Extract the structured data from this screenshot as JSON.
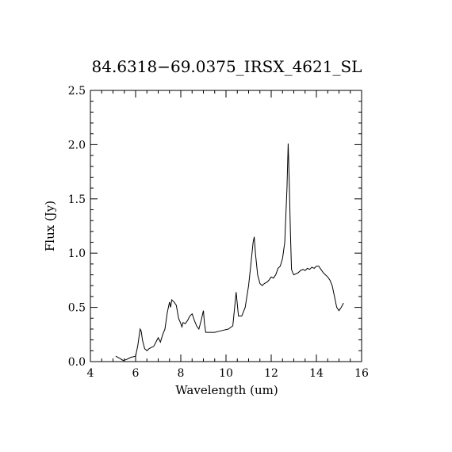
{
  "chart_data": {
    "type": "line",
    "title": "84.6318−69.0375_IRSX_4621_SL",
    "xlabel": "Wavelength (um)",
    "ylabel": "Flux (Jy)",
    "xlim": [
      4,
      16
    ],
    "ylim": [
      0,
      2.5
    ],
    "xticks": [
      4,
      6,
      8,
      10,
      12,
      14,
      16
    ],
    "xtick_labels": [
      "4",
      "6",
      "8",
      "10",
      "12",
      "14",
      "16"
    ],
    "yticks": [
      0,
      0.5,
      1,
      1.5,
      2,
      2.5
    ],
    "ytick_labels": [
      "0.0",
      "0.5",
      "1.0",
      "1.5",
      "2.0",
      "2.5"
    ],
    "x_minor_step": 0.5,
    "y_minor_step": 0.1,
    "grid": false,
    "series": [
      {
        "x": [
          5.12,
          5.3,
          5.45,
          5.6,
          5.8,
          6.0,
          6.1,
          6.2,
          6.25,
          6.3,
          6.4,
          6.5,
          6.6,
          6.7,
          6.8,
          6.9,
          7.0,
          7.1,
          7.2,
          7.3,
          7.4,
          7.5,
          7.55,
          7.6,
          7.7,
          7.8,
          7.9,
          8.0,
          8.05,
          8.1,
          8.2,
          8.3,
          8.4,
          8.5,
          8.6,
          8.7,
          8.8,
          8.9,
          9.0,
          9.05,
          9.1,
          9.3,
          9.5,
          9.7,
          9.9,
          10.1,
          10.3,
          10.45,
          10.55,
          10.7,
          10.85,
          11.0,
          11.1,
          11.2,
          11.25,
          11.3,
          11.4,
          11.5,
          11.6,
          11.7,
          11.8,
          11.9,
          12.0,
          12.1,
          12.2,
          12.3,
          12.4,
          12.5,
          12.6,
          12.7,
          12.75,
          12.8,
          12.85,
          12.9,
          12.95,
          13.0,
          13.1,
          13.2,
          13.3,
          13.4,
          13.5,
          13.6,
          13.7,
          13.8,
          13.9,
          14.0,
          14.1,
          14.2,
          14.3,
          14.4,
          14.5,
          14.6,
          14.7,
          14.8,
          14.9,
          15.0,
          15.1,
          15.2
        ],
        "y": [
          0.05,
          0.03,
          0.01,
          0.02,
          0.04,
          0.05,
          0.15,
          0.3,
          0.28,
          0.2,
          0.12,
          0.1,
          0.12,
          0.13,
          0.14,
          0.18,
          0.22,
          0.18,
          0.25,
          0.3,
          0.45,
          0.55,
          0.5,
          0.57,
          0.55,
          0.52,
          0.4,
          0.35,
          0.32,
          0.36,
          0.35,
          0.38,
          0.42,
          0.44,
          0.38,
          0.33,
          0.3,
          0.38,
          0.47,
          0.35,
          0.27,
          0.27,
          0.27,
          0.28,
          0.29,
          0.3,
          0.33,
          0.64,
          0.42,
          0.42,
          0.5,
          0.7,
          0.9,
          1.1,
          1.15,
          1.0,
          0.8,
          0.72,
          0.7,
          0.72,
          0.73,
          0.75,
          0.78,
          0.77,
          0.8,
          0.86,
          0.88,
          0.95,
          1.1,
          1.6,
          2.01,
          1.65,
          1.2,
          0.85,
          0.82,
          0.8,
          0.81,
          0.82,
          0.84,
          0.85,
          0.84,
          0.86,
          0.85,
          0.87,
          0.86,
          0.88,
          0.88,
          0.85,
          0.82,
          0.8,
          0.78,
          0.75,
          0.7,
          0.6,
          0.5,
          0.47,
          0.5,
          0.54
        ]
      }
    ]
  }
}
